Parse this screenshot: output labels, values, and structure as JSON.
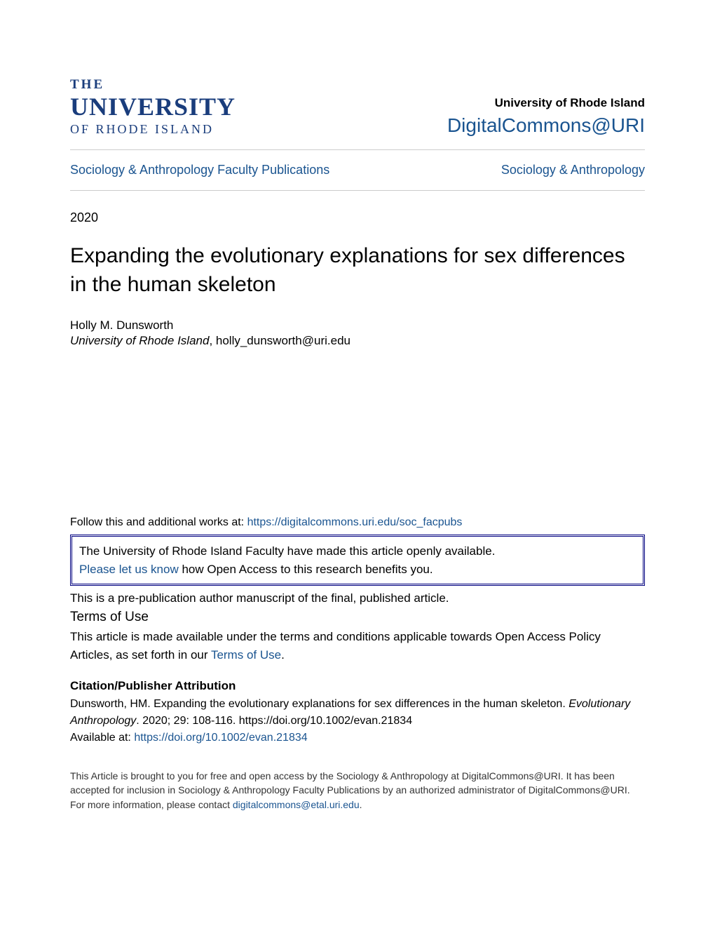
{
  "header": {
    "logo_the": "THE",
    "logo_university": "UNIVERSITY",
    "logo_ri": "OF RHODE ISLAND",
    "university_name": "University of Rhode Island",
    "site_name": "DigitalCommons@URI"
  },
  "breadcrumb": {
    "left": "Sociology & Anthropology Faculty Publications",
    "right": "Sociology & Anthropology"
  },
  "year": "2020",
  "title": "Expanding the evolutionary explanations for sex differences in the human skeleton",
  "author": {
    "name": "Holly M. Dunsworth",
    "institution": "University of Rhode Island",
    "email": ", holly_dunsworth@uri.edu"
  },
  "follow": {
    "prefix": "Follow this and additional works at: ",
    "url": "https://digitalcommons.uri.edu/soc_facpubs"
  },
  "oa_box": {
    "line1": "The University of Rhode Island Faculty have made this article openly available.",
    "link_text": "Please let us know",
    "line2_rest": " how Open Access to this research benefits you."
  },
  "prepub": "This is a pre-publication author manuscript of the final, published article.",
  "terms": {
    "heading": "Terms of Use",
    "text_prefix": "This article is made available under the terms and conditions applicable towards Open Access Policy Articles, as set forth in our ",
    "link": "Terms of Use",
    "suffix": "."
  },
  "citation": {
    "heading": "Citation/Publisher Attribution",
    "author_line": "Dunsworth, HM. Expanding the evolutionary explanations for sex differences in the human skeleton. ",
    "journal": "Evolutionary Anthropology",
    "details": ". 2020; 29: 108-116. https://doi.org/10.1002/evan.21834",
    "available_prefix": "Available at: ",
    "doi_url": "https://doi.org/10.1002/evan.21834"
  },
  "footer": {
    "text_prefix": "This Article is brought to you for free and open access by the Sociology & Anthropology at DigitalCommons@URI. It has been accepted for inclusion in Sociology & Anthropology Faculty Publications by an authorized administrator of DigitalCommons@URI. For more information, please contact ",
    "contact": "digitalcommons@etal.uri.edu",
    "suffix": "."
  },
  "colors": {
    "link": "#1a5490",
    "logo": "#1a3d7c",
    "divider": "#cccccc",
    "box_border": "#000080"
  }
}
